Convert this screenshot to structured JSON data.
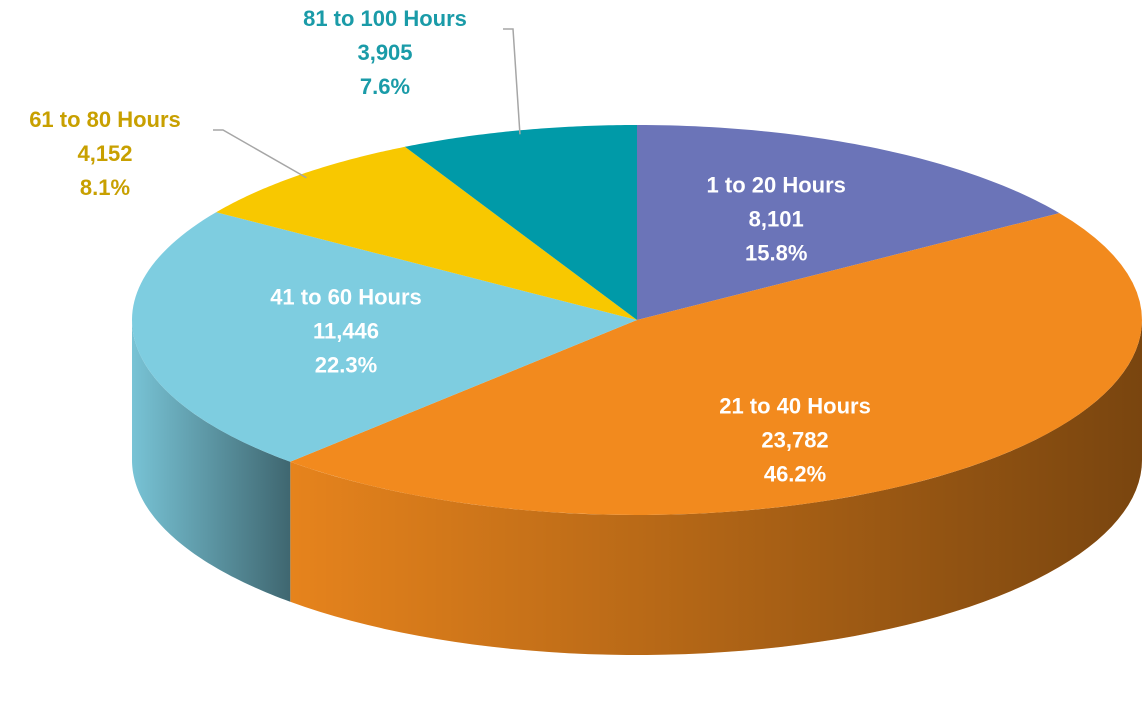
{
  "chart_data": {
    "type": "pie",
    "categories": [
      "1 to 20 Hours",
      "21 to 40 Hours",
      "41 to 60 Hours",
      "61 to 80 Hours",
      "81 to 100 Hours"
    ],
    "values": [
      8101,
      23782,
      11446,
      4152,
      3905
    ],
    "value_labels": [
      "8,101",
      "23,782",
      "11,446",
      "4,152",
      "3,905"
    ],
    "percents": [
      15.8,
      46.2,
      22.3,
      8.1,
      7.6
    ],
    "percent_labels": [
      "15.8%",
      "46.2%",
      "22.3%",
      "8.1%",
      "7.6%"
    ],
    "colors": [
      "#6b74b8",
      "#f28a1e",
      "#7ecde0",
      "#f8c800",
      "#009aa8"
    ]
  }
}
